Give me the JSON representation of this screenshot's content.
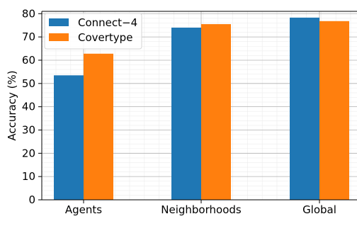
{
  "chart_data": {
    "type": "bar",
    "title": "",
    "xlabel": "",
    "ylabel": "Accuracy (%)",
    "categories": [
      "Agents",
      "Neighborhoods",
      "Global"
    ],
    "series": [
      {
        "name": "Connect−4",
        "color": "#1f77b4",
        "values": [
          53.5,
          74.0,
          78.3
        ]
      },
      {
        "name": "Covertype",
        "color": "#ff7f0e",
        "values": [
          62.8,
          75.5,
          76.8
        ]
      }
    ],
    "ylim": [
      0,
      81
    ],
    "yticks": [
      "0",
      "10",
      "20",
      "30",
      "40",
      "50",
      "60",
      "70",
      "80"
    ],
    "grid": true,
    "legend": "upper-left"
  }
}
